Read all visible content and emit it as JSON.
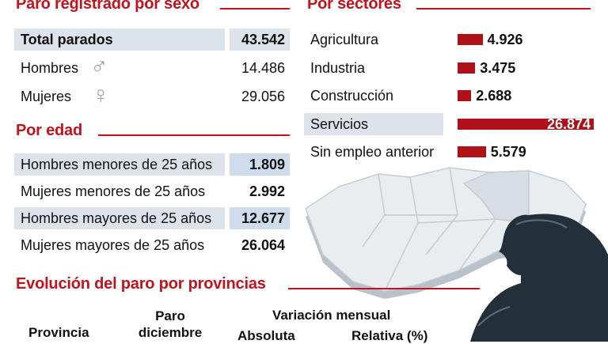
{
  "sexo": {
    "title": "Paro registrado por sexo",
    "rows": [
      {
        "label": "Total parados",
        "value": "43.542"
      },
      {
        "label": "Hombres",
        "value": "14.486",
        "symbol": "♂"
      },
      {
        "label": "Mujeres",
        "value": "29.056",
        "symbol": "♀"
      }
    ]
  },
  "edad": {
    "title": "Por edad",
    "rows": [
      {
        "label": "Hombres menores de 25 años",
        "value": "1.809"
      },
      {
        "label": "Mujeres menores de 25 años",
        "value": "2.992"
      },
      {
        "label": "Hombres mayores de 25 años",
        "value": "12.677"
      },
      {
        "label": "Mujeres mayores de 25 años",
        "value": "26.064"
      }
    ]
  },
  "sectores": {
    "title": "Por sectores"
  },
  "provincias": {
    "title": "Evolución del paro por provincias",
    "col_provincia": "Provincia",
    "col_paro": "Paro diciembre",
    "col_variacion": "Variación mensual",
    "col_absoluta": "Absoluta",
    "col_relativa": "Relativa (%)"
  },
  "colors": {
    "accent": "#c0141c",
    "bar": "#b01018",
    "row_shade": "#dde3ea",
    "row_blue": "#cfdceb"
  },
  "chart_data": {
    "type": "bar",
    "orientation": "horizontal",
    "title": "Por sectores",
    "categories": [
      "Agricultura",
      "Industria",
      "Construcción",
      "Servicios",
      "Sin empleo anterior"
    ],
    "values": [
      4926,
      3475,
      2688,
      26874,
      5579
    ],
    "value_labels": [
      "4.926",
      "3.475",
      "2.688",
      "26.874",
      "5.579"
    ],
    "xlim": [
      0,
      26874
    ],
    "grid": false
  }
}
